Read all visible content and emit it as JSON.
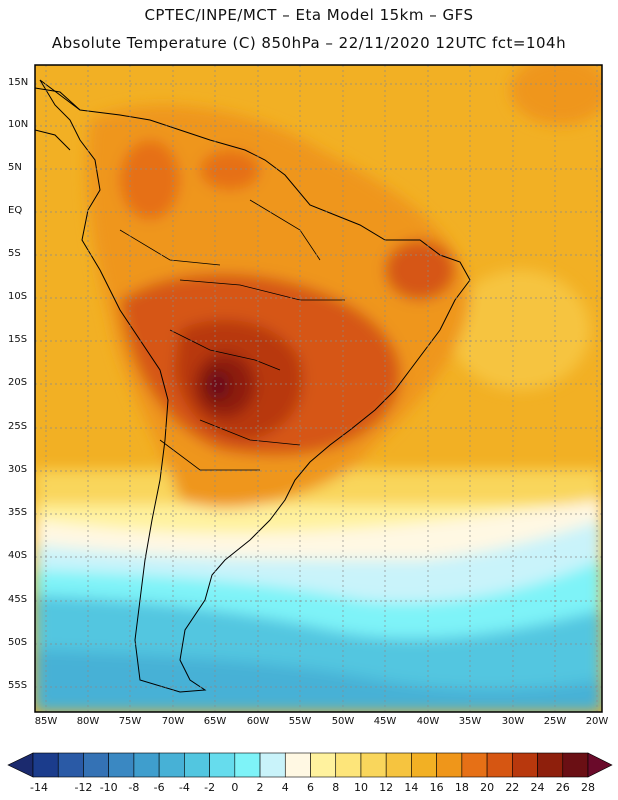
{
  "title_line1": "CPTEC/INPE/MCT –  Eta Model 15km – GFS",
  "title_line2": "Absolute Temperature (C) 850hPa – 22/11/2020 12UTC fct=104h",
  "lat_labels": [
    "15N",
    "10N",
    "5N",
    "EQ",
    "5S",
    "10S",
    "15S",
    "20S",
    "25S",
    "30S",
    "35S",
    "40S",
    "45S",
    "50S",
    "55S"
  ],
  "lon_labels": [
    "85W",
    "80W",
    "75W",
    "70W",
    "65W",
    "60W",
    "55W",
    "50W",
    "45W",
    "40W",
    "35W",
    "30W",
    "25W",
    "20W"
  ],
  "colorbar": {
    "labels": [
      "-14",
      "-12",
      "-10",
      "-8",
      "-6",
      "-4",
      "-2",
      "0",
      "2",
      "4",
      "6",
      "8",
      "10",
      "12",
      "14",
      "16",
      "18",
      "20",
      "22",
      "24",
      "26",
      "28"
    ],
    "colors": [
      "#1b3c8c",
      "#2a5aa6",
      "#3472b5",
      "#3a88c2",
      "#3f9ecd",
      "#47b1d6",
      "#52c6e0",
      "#66dced",
      "#7ef3f8",
      "#c9f3fa",
      "#fff8e3",
      "#fff29e",
      "#fde57a",
      "#f9d65c",
      "#f6c43f",
      "#f2b024",
      "#ef961a",
      "#e67016",
      "#d65612",
      "#b8380d",
      "#8e1f0c",
      "#6a0f14"
    ],
    "low_arrow": "#1b2a6e",
    "high_arrow": "#6a0a2a"
  }
}
